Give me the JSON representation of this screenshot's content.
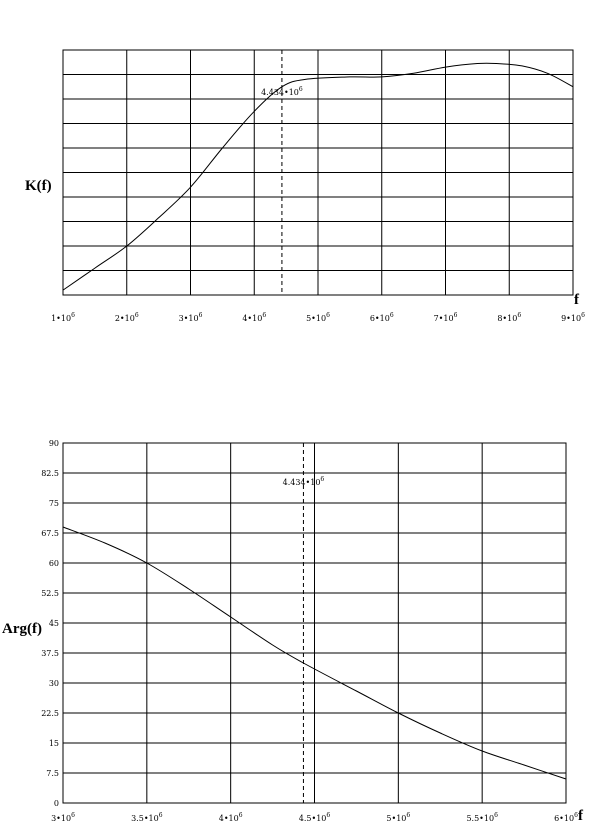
{
  "chart_data": [
    {
      "type": "line",
      "xlabel": "f",
      "ylabel": "K(f)",
      "xlim": [
        1000000,
        9000000
      ],
      "ylim": [
        0,
        10
      ],
      "y_ticks_labeled": false,
      "grid": true,
      "x_ticks": [
        {
          "mant": "1",
          "exp": "6"
        },
        {
          "mant": "2",
          "exp": "6"
        },
        {
          "mant": "3",
          "exp": "6"
        },
        {
          "mant": "4",
          "exp": "6"
        },
        {
          "mant": "5",
          "exp": "6"
        },
        {
          "mant": "6",
          "exp": "6"
        },
        {
          "mant": "7",
          "exp": "6"
        },
        {
          "mant": "8",
          "exp": "6"
        },
        {
          "mant": "9",
          "exp": "6"
        }
      ],
      "marker": {
        "x": 4434000,
        "mant": "4.434",
        "exp": "6"
      },
      "series": [
        {
          "x": [
            1000000,
            1500000,
            2000000,
            2500000,
            3000000,
            3500000,
            4000000,
            4434000,
            4800000,
            5500000,
            6000000,
            6500000,
            7000000,
            7500000,
            7800000,
            8200000,
            8600000,
            9000000
          ],
          "y": [
            0.2,
            1.1,
            2.0,
            3.15,
            4.4,
            6.0,
            7.5,
            8.5,
            8.8,
            8.9,
            8.9,
            9.05,
            9.3,
            9.45,
            9.45,
            9.35,
            9.05,
            8.5
          ]
        }
      ]
    },
    {
      "type": "line",
      "xlabel": "f",
      "ylabel": "Arg(f)",
      "xlim": [
        3000000,
        6000000
      ],
      "ylim": [
        0,
        90
      ],
      "grid": true,
      "y_ticks": [
        "0",
        "7.5",
        "15",
        "22.5",
        "30",
        "37.5",
        "45",
        "52.5",
        "60",
        "67.5",
        "75",
        "82.5",
        "90"
      ],
      "x_ticks": [
        {
          "mant": "3",
          "exp": "6"
        },
        {
          "mant": "3.5",
          "exp": "6"
        },
        {
          "mant": "4",
          "exp": "6"
        },
        {
          "mant": "4.5",
          "exp": "6"
        },
        {
          "mant": "5",
          "exp": "6"
        },
        {
          "mant": "5.5",
          "exp": "6"
        },
        {
          "mant": "6",
          "exp": "6"
        }
      ],
      "marker": {
        "x": 4434000,
        "mant": "4.434",
        "exp": "6"
      },
      "series": [
        {
          "x": [
            3000000,
            3250000,
            3500000,
            3750000,
            4000000,
            4250000,
            4434000,
            4750000,
            5000000,
            5250000,
            5500000,
            5750000,
            6000000
          ],
          "y": [
            69,
            65,
            60,
            53.5,
            46.5,
            39.5,
            35,
            28,
            22.5,
            17.5,
            13,
            9.5,
            6
          ]
        }
      ]
    }
  ]
}
